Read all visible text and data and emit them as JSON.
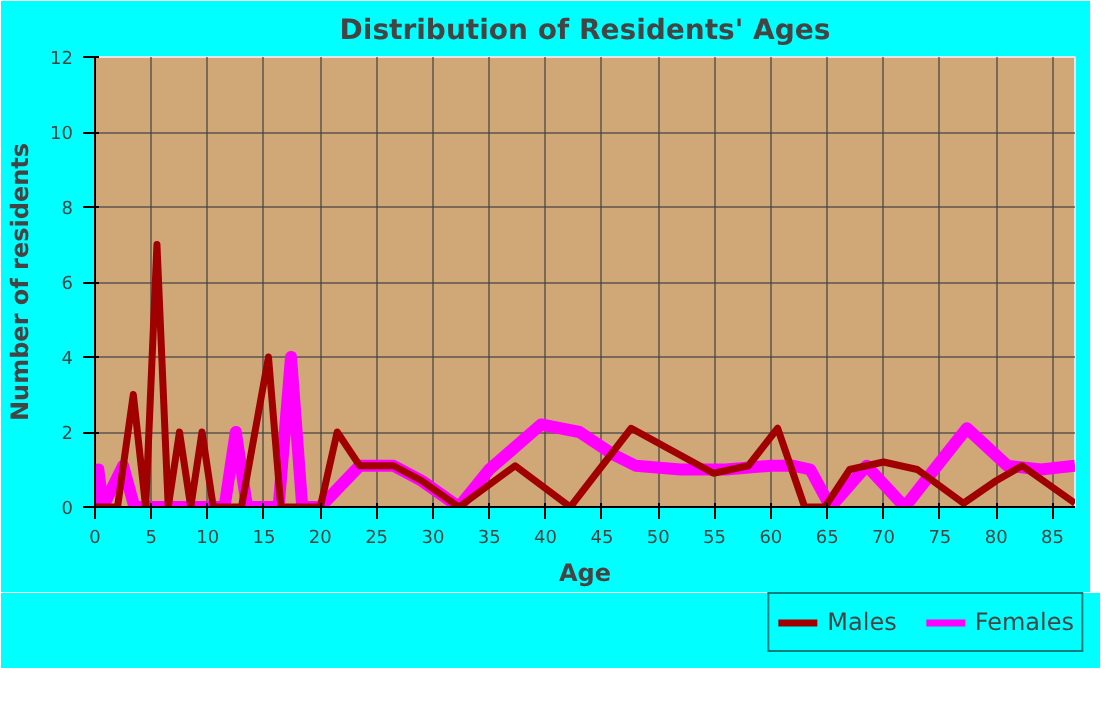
{
  "chart_data": {
    "type": "line",
    "title": "Distribution of Residents' Ages",
    "xlabel": "Age",
    "ylabel": "Number of residents",
    "xlim": [
      0,
      87
    ],
    "xticks": [
      0,
      5,
      10,
      15,
      20,
      25,
      30,
      35,
      40,
      45,
      50,
      55,
      60,
      65,
      70,
      75,
      80,
      85
    ],
    "ylim": [
      0,
      12
    ],
    "yticks": [
      0,
      2,
      4,
      6,
      8,
      10,
      12
    ],
    "grid": true,
    "legend": "bottom right",
    "marker": "none",
    "line_style": "solid",
    "series": [
      {
        "name": "Males",
        "color": "#a00000",
        "x": [
          0,
          2,
          3.4,
          4.5,
          5.5,
          6.5,
          7.5,
          8.5,
          9.5,
          10.5,
          13,
          15.4,
          16.5,
          20,
          21.5,
          23.5,
          26.5,
          29,
          32.3,
          37.3,
          42.2,
          47.6,
          54.9,
          58,
          60.6,
          63,
          64.8,
          67,
          70,
          73,
          77.1,
          80,
          82.3,
          87
        ],
        "values": [
          0,
          0,
          3,
          0,
          7,
          0,
          2,
          0,
          2,
          0,
          0,
          4,
          0,
          0,
          2,
          1.1,
          1.1,
          0.7,
          0,
          1.1,
          0,
          2.1,
          0.9,
          1.1,
          2.1,
          0,
          0,
          1,
          1.2,
          1,
          0.1,
          0.7,
          1.1,
          0.1
        ]
      },
      {
        "name": "Females",
        "color": "#ff00ff",
        "x": [
          0,
          0.3,
          0.7,
          2.5,
          3.5,
          11.5,
          12.5,
          13.5,
          16.3,
          17.4,
          18.4,
          20,
          23.5,
          26.5,
          29,
          32.3,
          35,
          39.6,
          43,
          46,
          48,
          52,
          56,
          60,
          62,
          63.5,
          65.3,
          68.5,
          71.9,
          74.5,
          77.4,
          81,
          84,
          87
        ],
        "values": [
          0,
          1,
          0,
          1.1,
          0,
          0,
          2,
          0,
          0,
          4,
          0,
          0,
          1.1,
          1.1,
          0.7,
          0,
          1,
          2.2,
          2,
          1.4,
          1.1,
          1,
          1,
          1.1,
          1.1,
          1,
          0,
          1.1,
          0,
          1,
          2.1,
          1.1,
          1,
          1.1
        ]
      }
    ]
  }
}
